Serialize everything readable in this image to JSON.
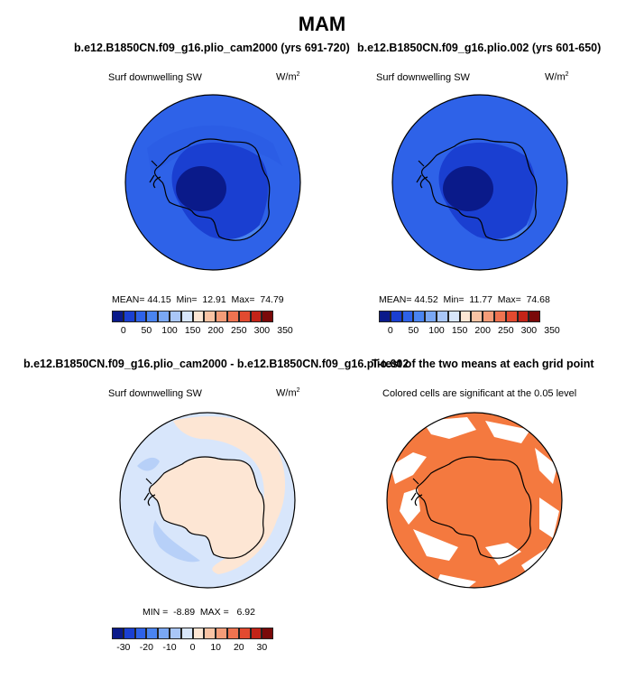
{
  "title": "MAM",
  "panels": {
    "top_left": {
      "subtitle": "b.e12.B1850CN.f09_g16.plio_cam2000 (yrs 691-720)",
      "field": "Surf downwelling SW",
      "units": "W/m",
      "units_exp": "2",
      "stats": {
        "mean_label": "MEAN=",
        "mean": "44.15",
        "min_label": "Min=",
        "min": "12.91",
        "max_label": "Max=",
        "max": "74.79"
      }
    },
    "top_right": {
      "subtitle": "b.e12.B1850CN.f09_g16.plio.002 (yrs 601-650)",
      "field": "Surf downwelling SW",
      "units": "W/m",
      "units_exp": "2",
      "stats": {
        "mean_label": "MEAN=",
        "mean": "44.52",
        "min_label": "Min=",
        "min": "11.77",
        "max_label": "Max=",
        "max": "74.68"
      }
    },
    "bottom_left": {
      "subtitle": "b.e12.B1850CN.f09_g16.plio_cam2000 - b.e12.B1850CN.f09_g16.plio.002",
      "field": "Surf downwelling SW",
      "units": "W/m",
      "units_exp": "2",
      "stats": {
        "min_label": "MIN =",
        "min": "-8.89",
        "max_label": "MAX =",
        "max": "6.92"
      }
    },
    "bottom_right": {
      "subtitle": "T-test of the two means at each grid point",
      "note": "Colored cells are significant at the 0.05 level"
    }
  },
  "colorbar_abs": {
    "colors": [
      "#0a1a8a",
      "#1a3fd1",
      "#2e62e8",
      "#4a84f0",
      "#7aa7f3",
      "#a9c6f7",
      "#d8e6fb",
      "#fde6d4",
      "#f9c3a4",
      "#f49c78",
      "#ee7350",
      "#e24a30",
      "#c32418",
      "#7a0a0a"
    ],
    "ticks": [
      "0",
      "50",
      "100",
      "150",
      "200",
      "250",
      "300",
      "350"
    ]
  },
  "colorbar_diff": {
    "colors": [
      "#0a1a8a",
      "#1a3fd1",
      "#2e62e8",
      "#4a84f0",
      "#7aa7f3",
      "#a9c6f7",
      "#d8e6fb",
      "#fde6d4",
      "#f9c3a4",
      "#f49c78",
      "#ee7350",
      "#e24a30",
      "#c32418",
      "#7a0a0a"
    ],
    "ticks": [
      "-30",
      "-20",
      "-10",
      "0",
      "10",
      "20",
      "30"
    ]
  },
  "map_colors": {
    "ocean_top": "#2e62e8",
    "interior_top": "#1a3fd1",
    "core_top": "#0a1a8a",
    "band_top": "#4a84f0",
    "diff_base": "#d8e6fb",
    "diff_land": "#fde6d4",
    "diff_neg": "#a9c6f7",
    "ttest_fill": "#f4793f"
  }
}
